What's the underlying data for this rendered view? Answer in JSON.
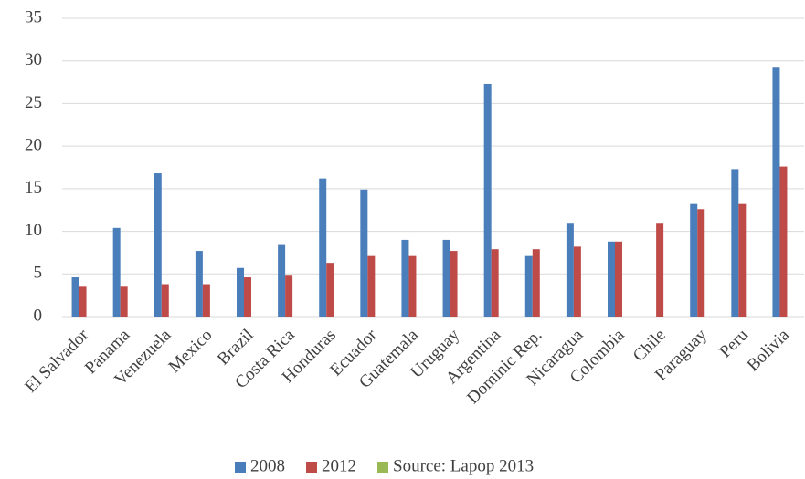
{
  "chart_data": {
    "type": "bar",
    "categories": [
      "El Salvador",
      "Panama",
      "Venezuela",
      "Mexico",
      "Brazil",
      "Costa Rica",
      "Honduras",
      "Ecuador",
      "Guatemala",
      "Uruguay",
      "Argentina",
      "Dominic Rep.",
      "Nicaragua",
      "Colombia",
      "Chile",
      "Paraguay",
      "Peru",
      "Bolivia"
    ],
    "series": [
      {
        "name": "2008",
        "color": "#4a7ebb",
        "values": [
          4.6,
          10.4,
          16.8,
          7.7,
          5.7,
          8.5,
          16.2,
          14.9,
          9.0,
          9.0,
          27.3,
          7.1,
          11.0,
          8.8,
          null,
          13.2,
          17.3,
          29.3
        ]
      },
      {
        "name": "2012",
        "color": "#be4b48",
        "values": [
          3.5,
          3.5,
          3.8,
          3.8,
          4.6,
          4.9,
          6.3,
          7.1,
          7.1,
          7.7,
          7.9,
          7.9,
          8.2,
          8.8,
          11.0,
          12.6,
          13.2,
          17.6
        ]
      },
      {
        "name": "Source: Lapop 2013",
        "color": "#98b954",
        "values": [
          null,
          null,
          null,
          null,
          null,
          null,
          null,
          null,
          null,
          null,
          null,
          null,
          null,
          null,
          null,
          null,
          null,
          null
        ]
      }
    ],
    "ylim": [
      0,
      35
    ],
    "yticks": [
      0,
      5,
      10,
      15,
      20,
      25,
      30,
      35
    ],
    "grid": true,
    "legend": "bottom"
  }
}
